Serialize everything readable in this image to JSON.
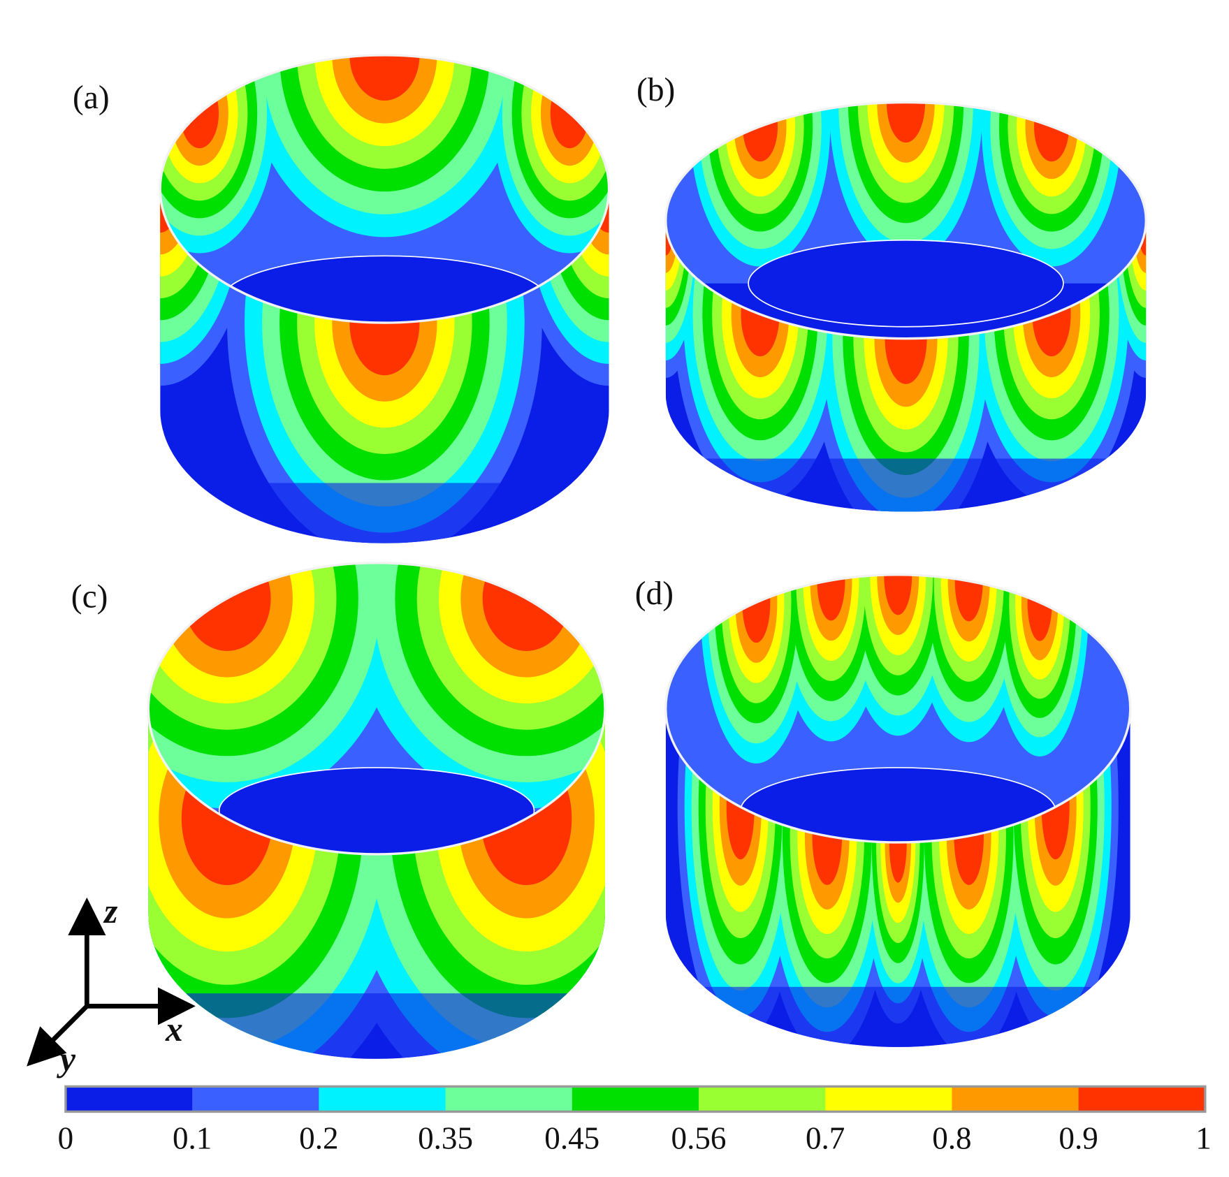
{
  "panels": [
    {
      "label": "(a)"
    },
    {
      "label": "(b)"
    },
    {
      "label": "(c)"
    },
    {
      "label": "(d)"
    }
  ],
  "axes": {
    "z": "z",
    "x": "x",
    "y": "y"
  },
  "colorbar": {
    "colors": [
      "#0a1ee8",
      "#3a60ff",
      "#00f2ff",
      "#6dff9a",
      "#00e000",
      "#99ff33",
      "#ffff00",
      "#ff9900",
      "#ff3300"
    ],
    "ticks": [
      0,
      0.1,
      0.2,
      0.35,
      0.45,
      0.56,
      0.7,
      0.8,
      0.9,
      1
    ]
  }
}
